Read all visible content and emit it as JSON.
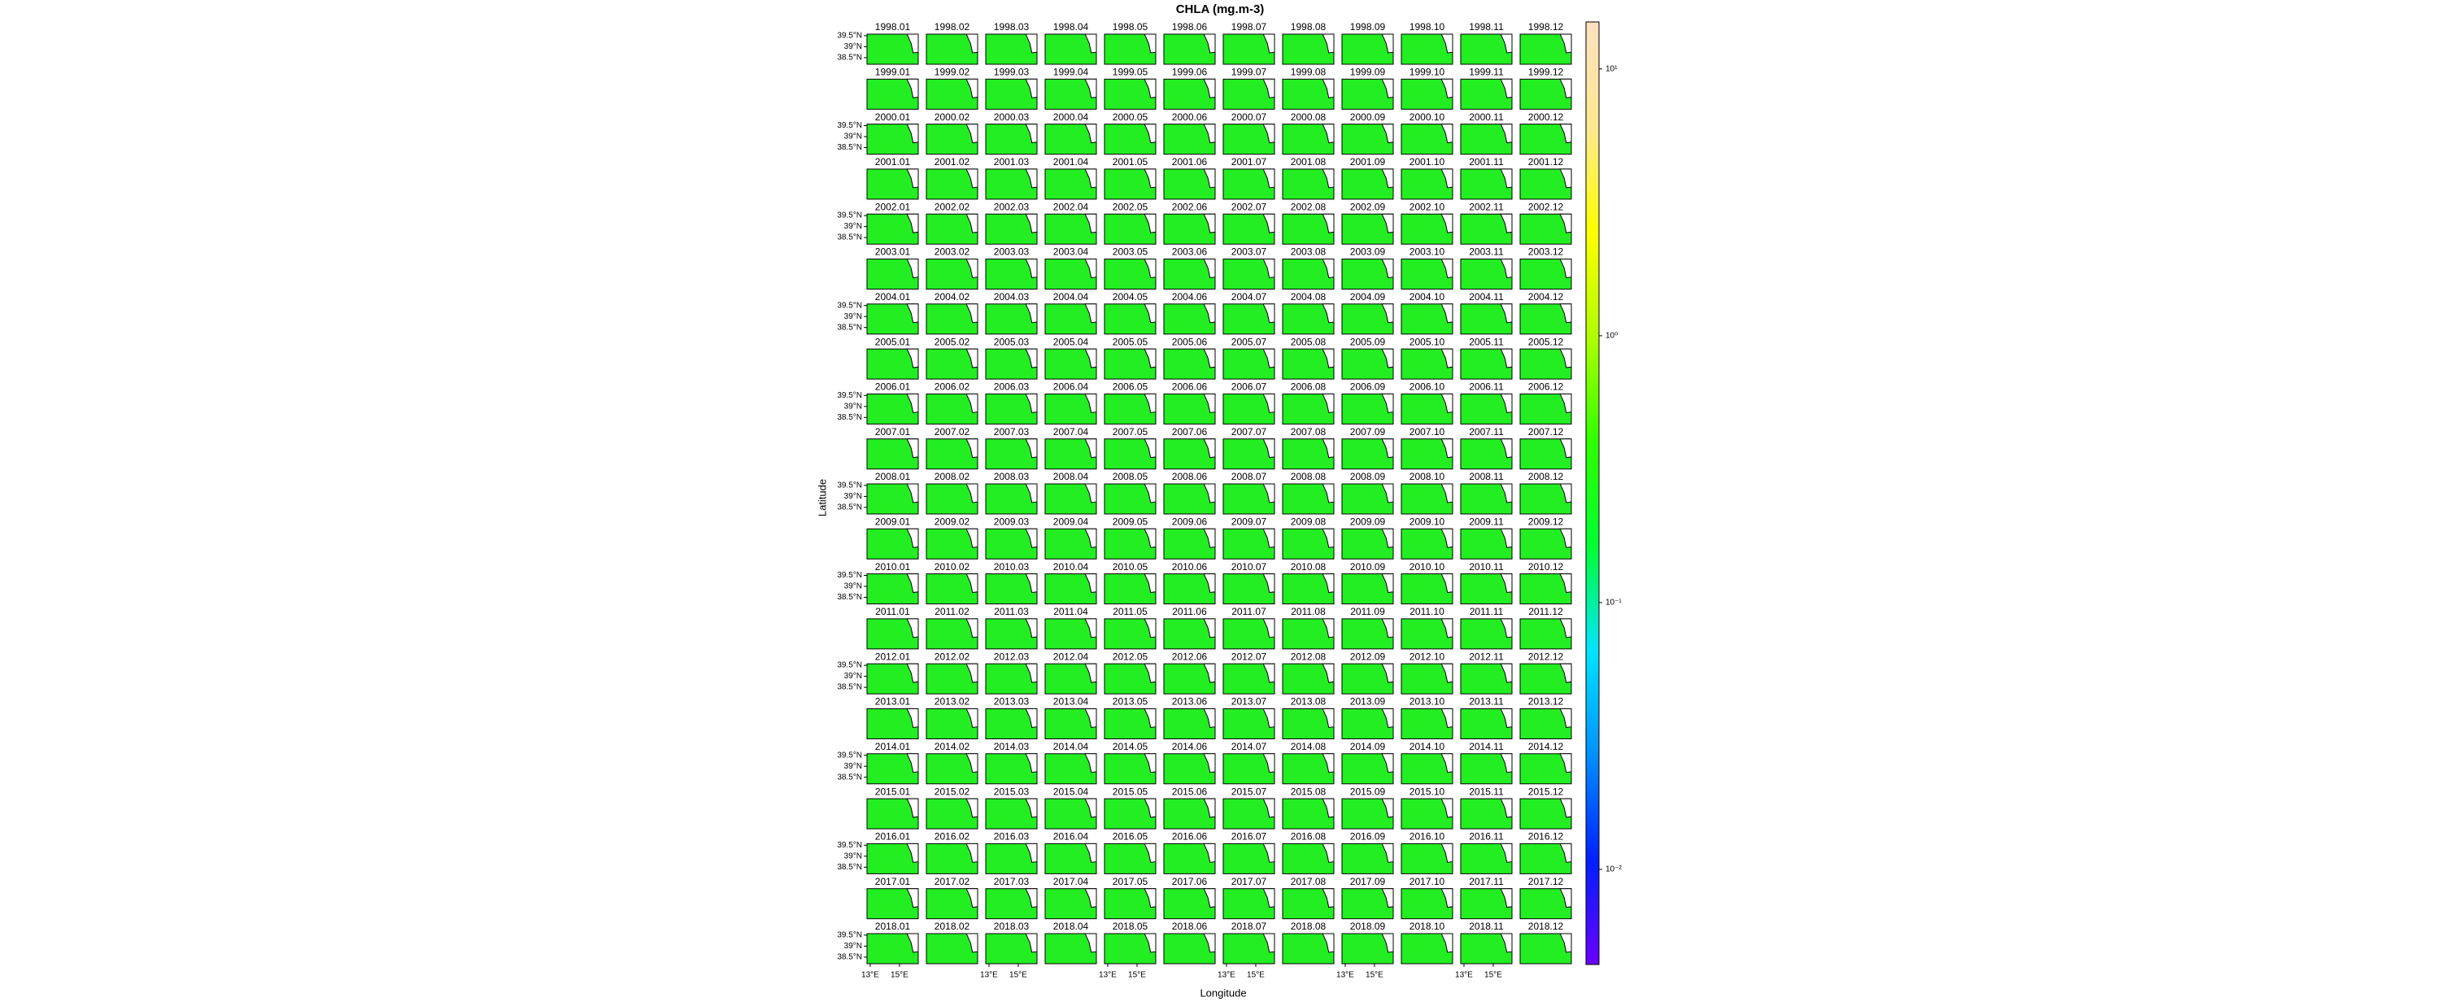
{
  "chart_data": {
    "type": "map_grid",
    "title": "CHLA (mg.m-3)",
    "xlabel": "Longitude",
    "ylabel": "Latitude",
    "map_color": "#22ee22",
    "panels": [
      [
        "1998.01",
        "1998.02",
        "1998.03",
        "1998.04",
        "1998.05",
        "1998.06",
        "1998.07",
        "1998.08",
        "1998.09",
        "1998.10",
        "1998.11",
        "1998.12"
      ],
      [
        "1999.01",
        "1999.02",
        "1999.03",
        "1999.04",
        "1999.05",
        "1999.06",
        "1999.07",
        "1999.08",
        "1999.09",
        "1999.10",
        "1999.11",
        "1999.12"
      ],
      [
        "2000.01",
        "2000.02",
        "2000.03",
        "2000.04",
        "2000.05",
        "2000.06",
        "2000.07",
        "2000.08",
        "2000.09",
        "2000.10",
        "2000.11",
        "2000.12"
      ],
      [
        "2001.01",
        "2001.02",
        "2001.03",
        "2001.04",
        "2001.05",
        "2001.06",
        "2001.07",
        "2001.08",
        "2001.09",
        "2001.10",
        "2001.11",
        "2001.12"
      ],
      [
        "2002.01",
        "2002.02",
        "2002.03",
        "2002.04",
        "2002.05",
        "2002.06",
        "2002.07",
        "2002.08",
        "2002.09",
        "2002.10",
        "2002.11",
        "2002.12"
      ],
      [
        "2003.01",
        "2003.02",
        "2003.03",
        "2003.04",
        "2003.05",
        "2003.06",
        "2003.07",
        "2003.08",
        "2003.09",
        "2003.10",
        "2003.11",
        "2003.12"
      ],
      [
        "2004.01",
        "2004.02",
        "2004.03",
        "2004.04",
        "2004.05",
        "2004.06",
        "2004.07",
        "2004.08",
        "2004.09",
        "2004.10",
        "2004.11",
        "2004.12"
      ],
      [
        "2005.01",
        "2005.02",
        "2005.03",
        "2005.04",
        "2005.05",
        "2005.06",
        "2005.07",
        "2005.08",
        "2005.09",
        "2005.10",
        "2005.11",
        "2005.12"
      ],
      [
        "2006.01",
        "2006.02",
        "2006.03",
        "2006.04",
        "2006.05",
        "2006.06",
        "2006.07",
        "2006.08",
        "2006.09",
        "2006.10",
        "2006.11",
        "2006.12"
      ],
      [
        "2007.01",
        "2007.02",
        "2007.03",
        "2007.04",
        "2007.05",
        "2007.06",
        "2007.07",
        "2007.08",
        "2007.09",
        "2007.10",
        "2007.11",
        "2007.12"
      ],
      [
        "2008.01",
        "2008.02",
        "2008.03",
        "2008.04",
        "2008.05",
        "2008.06",
        "2008.07",
        "2008.08",
        "2008.09",
        "2008.10",
        "2008.11",
        "2008.12"
      ],
      [
        "2009.01",
        "2009.02",
        "2009.03",
        "2009.04",
        "2009.05",
        "2009.06",
        "2009.07",
        "2009.08",
        "2009.09",
        "2009.10",
        "2009.11",
        "2009.12"
      ],
      [
        "2010.01",
        "2010.02",
        "2010.03",
        "2010.04",
        "2010.05",
        "2010.06",
        "2010.07",
        "2010.08",
        "2010.09",
        "2010.10",
        "2010.11",
        "2010.12"
      ],
      [
        "2011.01",
        "2011.02",
        "2011.03",
        "2011.04",
        "2011.05",
        "2011.06",
        "2011.07",
        "2011.08",
        "2011.09",
        "2011.10",
        "2011.11",
        "2011.12"
      ],
      [
        "2012.01",
        "2012.02",
        "2012.03",
        "2012.04",
        "2012.05",
        "2012.06",
        "2012.07",
        "2012.08",
        "2012.09",
        "2012.10",
        "2012.11",
        "2012.12"
      ],
      [
        "2013.01",
        "2013.02",
        "2013.03",
        "2013.04",
        "2013.05",
        "2013.06",
        "2013.07",
        "2013.08",
        "2013.09",
        "2013.10",
        "2013.11",
        "2013.12"
      ],
      [
        "2014.01",
        "2014.02",
        "2014.03",
        "2014.04",
        "2014.05",
        "2014.06",
        "2014.07",
        "2014.08",
        "2014.09",
        "2014.10",
        "2014.11",
        "2014.12"
      ],
      [
        "2015.01",
        "2015.02",
        "2015.03",
        "2015.04",
        "2015.05",
        "2015.06",
        "2015.07",
        "2015.08",
        "2015.09",
        "2015.10",
        "2015.11",
        "2015.12"
      ],
      [
        "2016.01",
        "2016.02",
        "2016.03",
        "2016.04",
        "2016.05",
        "2016.06",
        "2016.07",
        "2016.08",
        "2016.09",
        "2016.10",
        "2016.11",
        "2016.12"
      ],
      [
        "2017.01",
        "2017.02",
        "2017.03",
        "2017.04",
        "2017.05",
        "2017.06",
        "2017.07",
        "2017.08",
        "2017.09",
        "2017.10",
        "2017.11",
        "2017.12"
      ],
      [
        "2018.01",
        "2018.02",
        "2018.03",
        "2018.04",
        "2018.05",
        "2018.06",
        "2018.07",
        "2018.08",
        "2018.09",
        "2018.10",
        "2018.11",
        "2018.12"
      ]
    ],
    "xlim": [
      12.78,
      16.28
    ],
    "xticks": [
      {
        "value": 13,
        "label": "13°E"
      },
      {
        "value": 15,
        "label": "15°E"
      }
    ],
    "ylim": [
      38.2,
      39.57
    ],
    "yticks": [
      {
        "value": 38.5,
        "label": "38.5°N"
      },
      {
        "value": 39,
        "label": "39°N"
      },
      {
        "value": 39.5,
        "label": "39.5°N"
      }
    ],
    "colorbar": {
      "scale": "log",
      "lim": [
        0.0044,
        15
      ],
      "ticks": [
        {
          "value": 0.01,
          "label": "10⁻²"
        },
        {
          "value": 0.1,
          "label": "10⁻¹"
        },
        {
          "value": 1,
          "label": "10⁰"
        },
        {
          "value": 10,
          "label": "10¹"
        }
      ],
      "colors": [
        "#6a00ff",
        "#0020ff",
        "#0090ff",
        "#00e5ff",
        "#00ff30",
        "#30ff00",
        "#b0ff00",
        "#ffff00",
        "#ffe890",
        "#ffe0c0"
      ]
    }
  }
}
